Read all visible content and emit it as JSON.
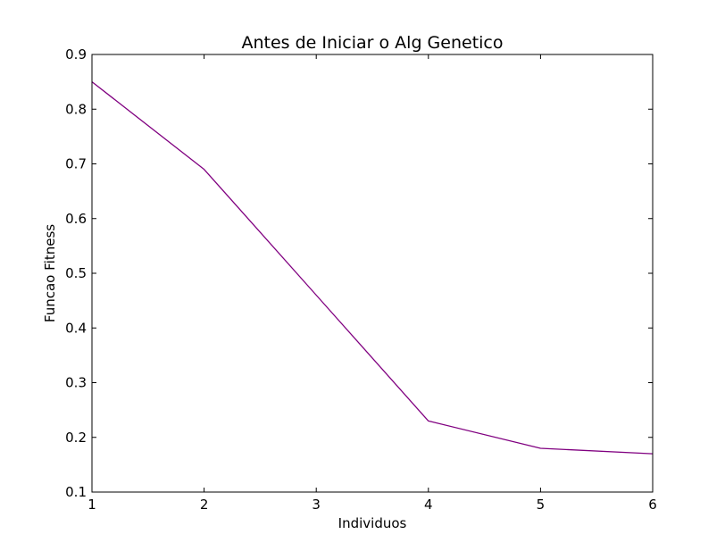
{
  "chart_data": {
    "type": "line",
    "title": "Antes de Iniciar o Alg Genetico",
    "xlabel": "Individuos",
    "ylabel": "Funcao Fitness",
    "x": [
      1,
      2,
      3,
      4,
      5,
      6
    ],
    "xlim": [
      1,
      6
    ],
    "ylim": [
      0.1,
      0.9
    ],
    "x_ticks": [
      "1",
      "2",
      "3",
      "4",
      "5",
      "6"
    ],
    "y_ticks": [
      "0.1",
      "0.2",
      "0.3",
      "0.4",
      "0.5",
      "0.6",
      "0.7",
      "0.8",
      "0.9"
    ],
    "grid": false,
    "series": [
      {
        "color": "#800080",
        "values": [
          0.85,
          0.69,
          0.46,
          0.23,
          0.18,
          0.17
        ]
      }
    ]
  }
}
